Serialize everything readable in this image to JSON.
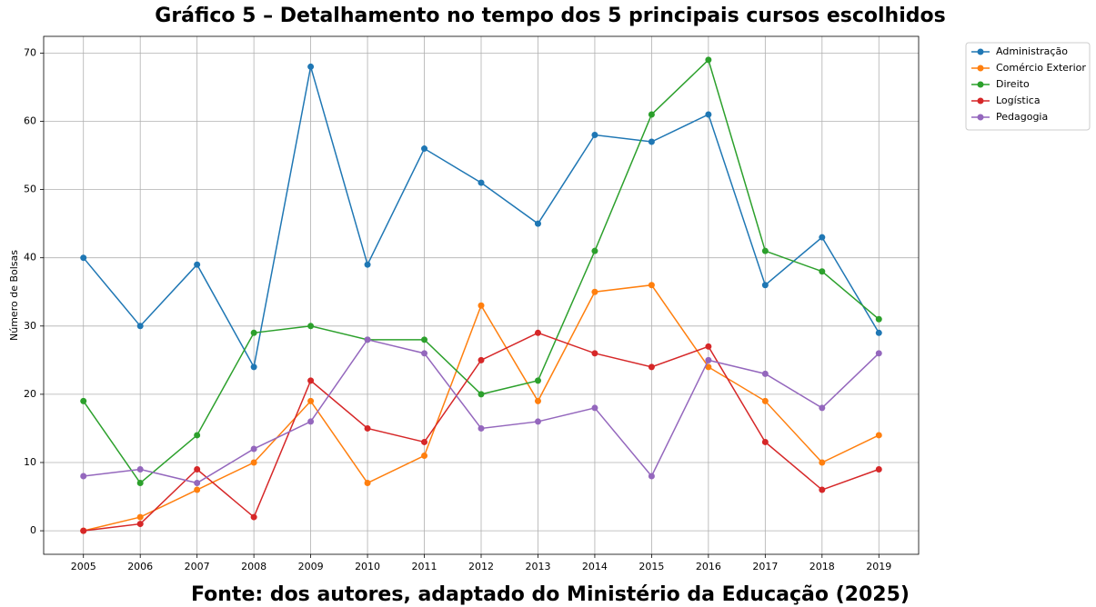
{
  "chart_data": {
    "type": "line",
    "title": "Gráfico 5 – Detalhamento no tempo dos 5 principais cursos escolhidos",
    "footer": "Fonte: dos autores, adaptado do Ministério da Educação (2025)",
    "y_label": "Número de Bolsas",
    "x": [
      2005,
      2006,
      2007,
      2008,
      2009,
      2010,
      2011,
      2012,
      2013,
      2014,
      2015,
      2016,
      2017,
      2018,
      2019
    ],
    "xlim": [
      2004.3,
      2019.7
    ],
    "xticks": [
      2005,
      2006,
      2007,
      2008,
      2009,
      2010,
      2011,
      2012,
      2013,
      2014,
      2015,
      2016,
      2017,
      2018,
      2019
    ],
    "ylim": [
      -3.45,
      72.45
    ],
    "yticks": [
      0,
      10,
      20,
      30,
      40,
      50,
      60,
      70
    ],
    "grid": true,
    "legend": "outside-upper-right",
    "series": [
      {
        "name": "Administração",
        "color": "#1f77b4",
        "values": [
          40,
          30,
          39,
          24,
          68,
          39,
          56,
          51,
          45,
          58,
          57,
          61,
          36,
          43,
          29
        ]
      },
      {
        "name": "Comércio Exterior",
        "color": "#ff7f0e",
        "values": [
          0,
          2,
          6,
          10,
          19,
          7,
          11,
          33,
          19,
          35,
          36,
          24,
          19,
          10,
          14
        ]
      },
      {
        "name": "Direito",
        "color": "#2ca02c",
        "values": [
          19,
          7,
          14,
          29,
          30,
          28,
          28,
          20,
          22,
          41,
          61,
          69,
          41,
          38,
          31
        ]
      },
      {
        "name": "Logística",
        "color": "#d62728",
        "values": [
          0,
          1,
          9,
          2,
          22,
          15,
          13,
          25,
          29,
          26,
          24,
          27,
          13,
          6,
          9
        ]
      },
      {
        "name": "Pedagogia",
        "color": "#9467bd",
        "values": [
          8,
          9,
          7,
          12,
          16,
          28,
          26,
          15,
          16,
          18,
          8,
          25,
          23,
          18,
          26
        ]
      }
    ]
  }
}
